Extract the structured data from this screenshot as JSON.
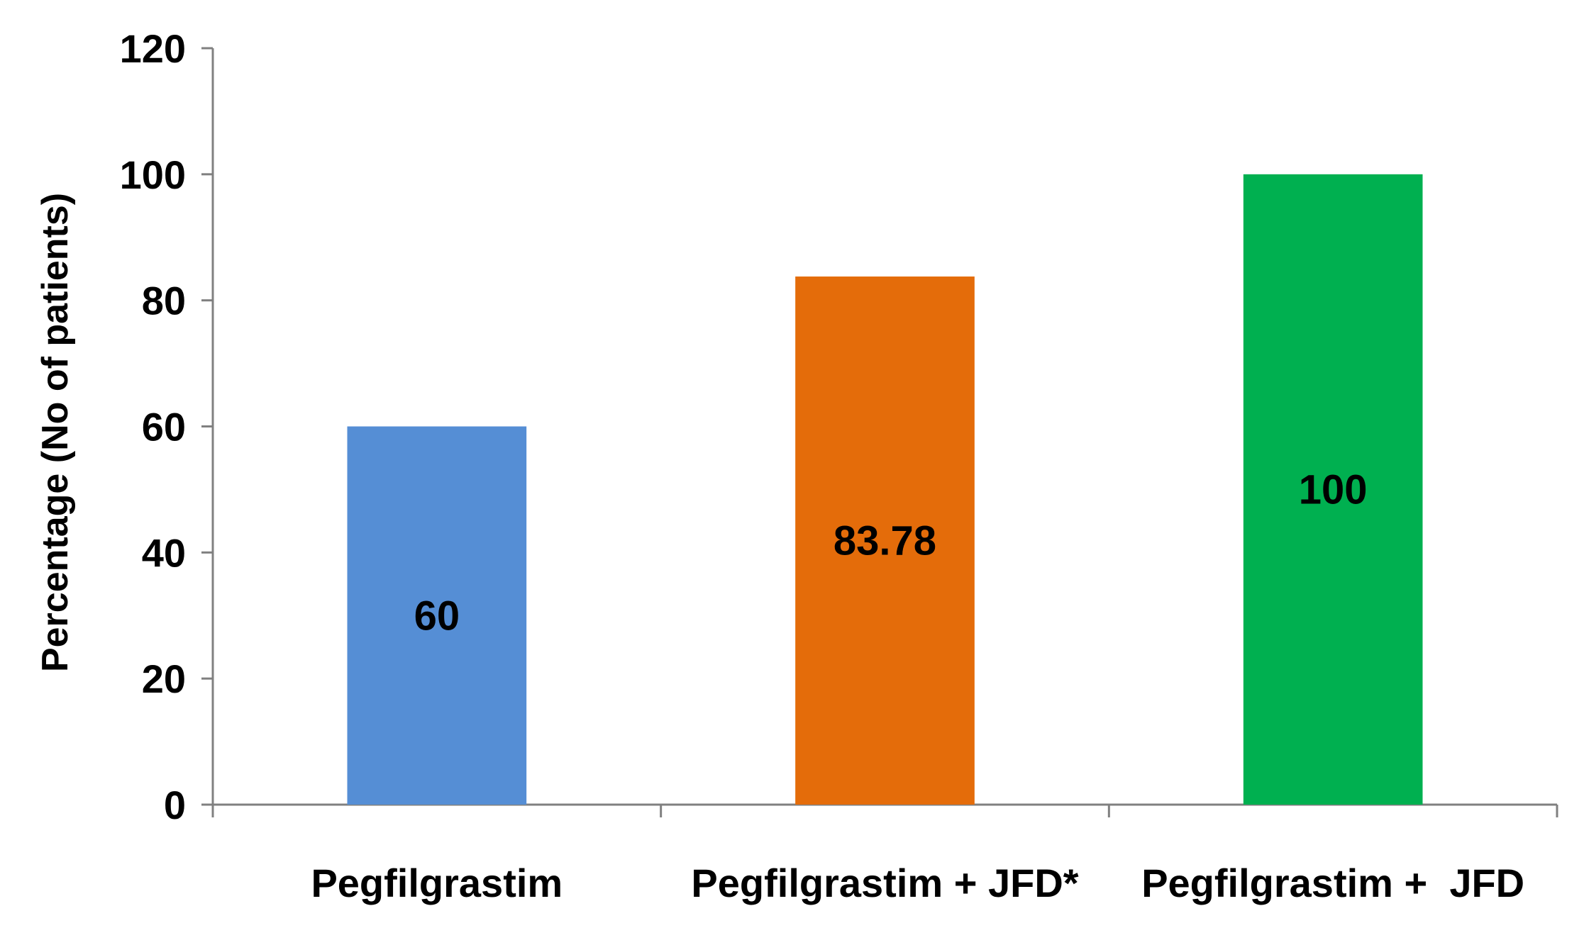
{
  "chart_data": {
    "type": "bar",
    "title": "",
    "xlabel": "",
    "ylabel": "Percentage (No of patients)",
    "categories": [
      "Pegfilgrastim",
      "Pegfilgrastim + JFD*",
      "Pegfilgrastim +  JFD"
    ],
    "values": [
      60,
      83.78,
      100
    ],
    "data_labels": [
      "60",
      "83.78",
      "100"
    ],
    "bar_colors": [
      "#558ED5",
      "#E46C0A",
      "#00B050"
    ],
    "ylim": [
      0,
      120
    ],
    "yticks": [
      0,
      20,
      40,
      60,
      80,
      100,
      120
    ],
    "ytick_labels": [
      "0",
      "20",
      "40",
      "60",
      "80",
      "100",
      "120"
    ],
    "grid": false,
    "legend": "none"
  }
}
